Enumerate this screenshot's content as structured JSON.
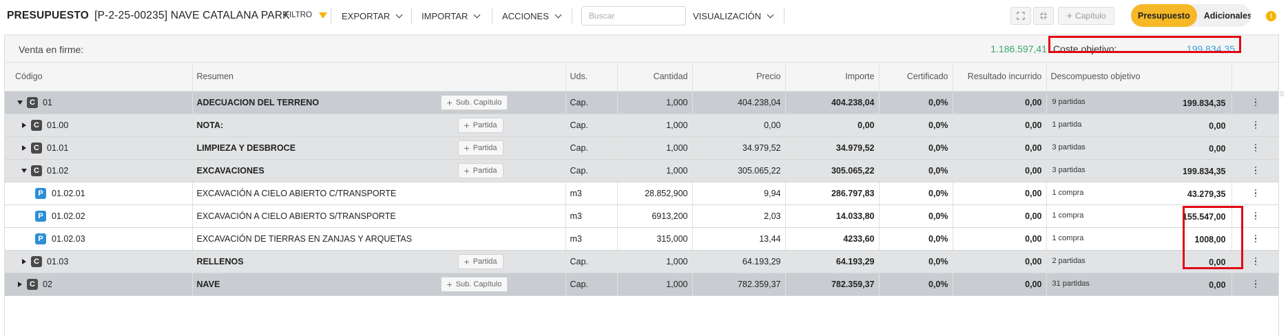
{
  "header": {
    "section": "PRESUPUESTO",
    "project": "[P-2-25-00235] NAVE CATALANA PARK",
    "filter_label": "FILTRO",
    "export_label": "EXPORTAR",
    "import_label": "IMPORTAR",
    "actions_label": "ACCIONES",
    "search_placeholder": "Buscar",
    "view_label": "VISUALIZACIÓN",
    "chapter_button": "Capítulo",
    "toggle_active": "Presupuesto",
    "toggle_inactive": "Adicionales",
    "accent_color": "#f6b826"
  },
  "summary": {
    "label": "Venta en firme:",
    "venta_value": "1.186.597,41",
    "coste_label": "Coste objetivo:",
    "coste_value": "199.834,35"
  },
  "columns": [
    "Código",
    "Resumen",
    "Uds.",
    "Cantidad",
    "Precio",
    "Importe",
    "Certificado",
    "Resultado incurrido",
    "Descompuesto objetivo"
  ],
  "rows": [
    {
      "level": 0,
      "type": "C",
      "caret": "down",
      "code": "01",
      "summary": "ADECUACION DEL TERRENO",
      "button": "Sub. Capítulo",
      "uds": "Cap.",
      "cantidad": "1,000",
      "precio": "404.238,04",
      "importe": "404.238,04",
      "certificado": "0,0%",
      "resultado": "0,00",
      "desc_count": "9 partidas",
      "desc_value": "199.834,35"
    },
    {
      "level": 1,
      "type": "C",
      "caret": "right",
      "code": "01.00",
      "summary": "NOTA:",
      "button": "Partida",
      "uds": "Cap.",
      "cantidad": "1,000",
      "precio": "0,00",
      "importe": "0,00",
      "certificado": "0,0%",
      "resultado": "0,00",
      "desc_count": "1 partida",
      "desc_value": "0,00"
    },
    {
      "level": 1,
      "type": "C",
      "caret": "right",
      "code": "01.01",
      "summary": "LIMPIEZA Y DESBROCE",
      "button": "Partida",
      "uds": "Cap.",
      "cantidad": "1,000",
      "precio": "34.979,52",
      "importe": "34.979,52",
      "certificado": "0,0%",
      "resultado": "0,00",
      "desc_count": "3 partidas",
      "desc_value": "0,00"
    },
    {
      "level": 1,
      "type": "C",
      "caret": "down",
      "code": "01.02",
      "summary": "EXCAVACIONES",
      "button": "Partida",
      "uds": "Cap.",
      "cantidad": "1,000",
      "precio": "305.065,22",
      "importe": "305.065,22",
      "certificado": "0,0%",
      "resultado": "0,00",
      "desc_count": "3 partidas",
      "desc_value": "199.834,35"
    },
    {
      "level": 2,
      "type": "P",
      "caret": "",
      "code": "01.02.01",
      "summary": "EXCAVACIÓN A CIELO ABIERTO C/TRANSPORTE",
      "button": "",
      "uds": "m3",
      "cantidad": "28.852,900",
      "precio": "9,94",
      "importe": "286.797,83",
      "certificado": "0,0%",
      "resultado": "0,00",
      "desc_count": "1 compra",
      "desc_value": "43.279,35"
    },
    {
      "level": 2,
      "type": "P",
      "caret": "",
      "code": "01.02.02",
      "summary": "EXCAVACIÓN A CIELO ABIERTO S/TRANSPORTE",
      "button": "",
      "uds": "m3",
      "cantidad": "6913,200",
      "precio": "2,03",
      "importe": "14.033,80",
      "certificado": "0,0%",
      "resultado": "0,00",
      "desc_count": "1 compra",
      "desc_value": "155.547,00"
    },
    {
      "level": 2,
      "type": "P",
      "caret": "",
      "code": "01.02.03",
      "summary": "EXCAVACIÓN DE TIERRAS EN ZANJAS Y ARQUETAS",
      "button": "",
      "uds": "m3",
      "cantidad": "315,000",
      "precio": "13,44",
      "importe": "4233,60",
      "certificado": "0,0%",
      "resultado": "0,00",
      "desc_count": "1 compra",
      "desc_value": "1008,00"
    },
    {
      "level": 1,
      "type": "C",
      "caret": "right",
      "code": "01.03",
      "summary": "RELLENOS",
      "button": "Partida",
      "uds": "Cap.",
      "cantidad": "1,000",
      "precio": "64.193,29",
      "importe": "64.193,29",
      "certificado": "0,0%",
      "resultado": "0,00",
      "desc_count": "2 partidas",
      "desc_value": "0,00"
    },
    {
      "level": 0,
      "type": "C",
      "caret": "right",
      "code": "02",
      "summary": "NAVE",
      "button": "Sub. Capítulo",
      "uds": "Cap.",
      "cantidad": "1,000",
      "precio": "782.359,37",
      "importe": "782.359,37",
      "certificado": "0,0%",
      "resultado": "0,00",
      "desc_count": "31 partidas",
      "desc_value": "0,00"
    }
  ]
}
